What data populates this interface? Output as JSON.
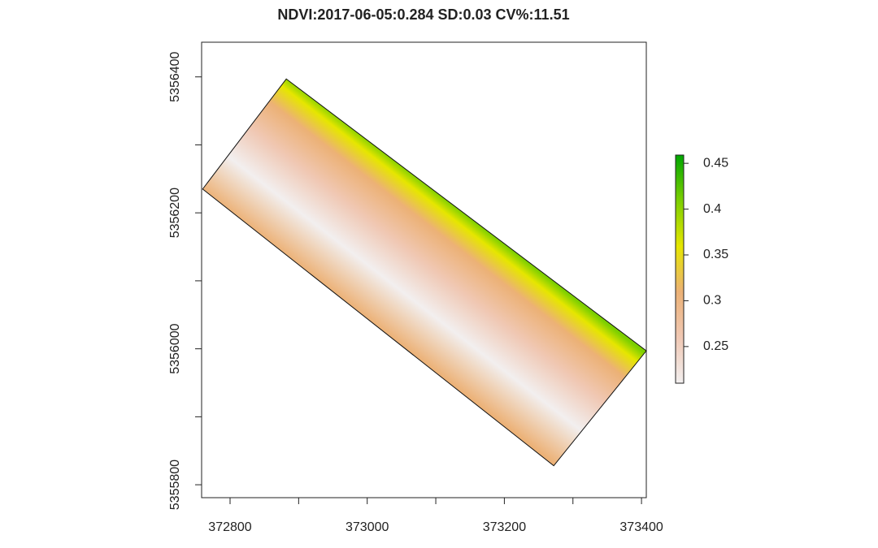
{
  "chart_data": {
    "type": "raster",
    "title": "NDVI:2017-06-05:0.284 SD:0.03 CV%:11.51",
    "xlim": [
      372758.5,
      373407
    ],
    "ylim": [
      5355781,
      5356451
    ],
    "xticks": [
      372800,
      373000,
      373200,
      373400
    ],
    "xminor_ticks": [
      372900,
      373100,
      373300
    ],
    "yticks": [
      5355800,
      5356000,
      5356200,
      5356400
    ],
    "yminor_ticks": [
      5355900,
      5356100,
      5356300
    ],
    "polygon": {
      "x": [
        372882,
        373407,
        373272,
        372760
      ],
      "y": [
        5356397,
        5355997,
        5355828,
        5356235
      ]
    },
    "colorbar": {
      "lim": [
        0.21,
        0.459
      ],
      "ticks": [
        0.25,
        0.3,
        0.35,
        0.4,
        0.45
      ],
      "colors": [
        "#f2efef",
        "#f0c8b4",
        "#ecb176",
        "#e6e600",
        "#7ccf00",
        "#00a600"
      ]
    }
  }
}
